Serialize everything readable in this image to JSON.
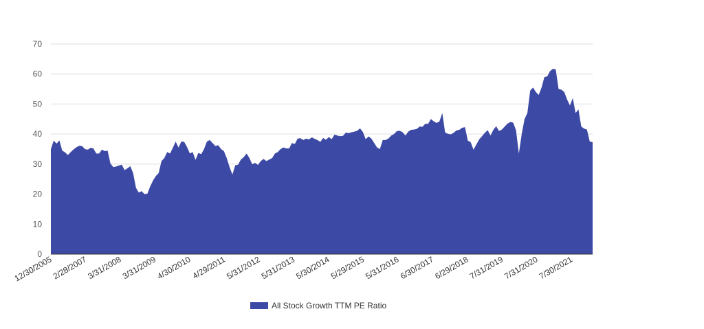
{
  "chart_data": {
    "type": "area",
    "title": "",
    "xlabel": "",
    "ylabel": "",
    "ylim": [
      0,
      70
    ],
    "yticks": [
      0,
      10,
      20,
      30,
      40,
      50,
      60,
      70
    ],
    "grid": true,
    "legend_position": "bottom",
    "x_tick_labels": [
      "12/30/2005",
      "2/28/2007",
      "3/31/2008",
      "3/31/2009",
      "4/30/2010",
      "4/29/2011",
      "5/31/2012",
      "5/31/2013",
      "5/30/2014",
      "5/29/2015",
      "5/31/2016",
      "6/30/2017",
      "6/29/2018",
      "7/31/2019",
      "7/31/2020",
      "7/30/2021"
    ],
    "series": [
      {
        "name": "All Stock Growth TTM PE Ratio",
        "color": "#3d4aa5",
        "values": [
          35,
          37.8,
          36.8,
          37.9,
          34.5,
          33.9,
          33,
          34,
          34.9,
          35.6,
          36.1,
          36,
          35,
          34.8,
          35.4,
          35.2,
          33.5,
          33.5,
          34.8,
          34.3,
          34.5,
          30.2,
          29,
          29.2,
          29.5,
          29.8,
          28,
          28.6,
          29.3,
          27,
          22.1,
          20.5,
          21,
          20,
          20.1,
          22.5,
          24.5,
          26,
          27,
          31,
          32,
          34,
          33.5,
          35.4,
          37.5,
          35.5,
          37.5,
          37.4,
          35.7,
          33.5,
          34,
          31.4,
          33.7,
          33.3,
          35,
          37.5,
          38,
          37,
          36,
          36.3,
          35,
          34.3,
          32,
          29,
          26.5,
          29.6,
          29.8,
          31.5,
          32.3,
          33.5,
          32,
          29.9,
          30.4,
          29.7,
          31,
          31.7,
          31,
          31.5,
          32,
          33.5,
          34,
          35,
          35.5,
          35.2,
          35.2,
          37,
          36.7,
          38.5,
          38.6,
          38,
          38.5,
          38.2,
          38.9,
          38.4,
          38,
          37.4,
          38.7,
          38.1,
          39,
          38.3,
          39.8,
          39.5,
          39.3,
          39.4,
          40.5,
          40.3,
          40.6,
          40.8,
          41.1,
          41.9,
          40.7,
          38.3,
          39.2,
          38.5,
          37,
          35.5,
          35,
          38,
          38,
          38.5,
          39.5,
          40,
          41,
          41.1,
          40.6,
          39.5,
          40.8,
          41.4,
          41.5,
          41.7,
          42.5,
          42.4,
          43.4,
          43.4,
          45,
          44.2,
          43.7,
          44.2,
          47,
          40.5,
          40.1,
          39.9,
          40.4,
          41.2,
          41.4,
          42.1,
          42.3,
          37.8,
          37.3,
          34.8,
          36.5,
          38.2,
          39.3,
          40.4,
          41.3,
          39.5,
          41.4,
          42.6,
          41,
          41.5,
          42.5,
          43.5,
          44,
          43.8,
          41.2,
          33.5,
          40,
          45,
          47,
          54.5,
          55.5,
          54,
          53,
          55.5,
          59,
          59.2,
          61,
          61.7,
          61.5,
          55,
          54.8,
          54,
          51.5,
          49.5,
          52,
          47,
          48.2,
          42.5,
          41.8,
          41.5,
          37.5,
          37.3
        ]
      }
    ]
  }
}
